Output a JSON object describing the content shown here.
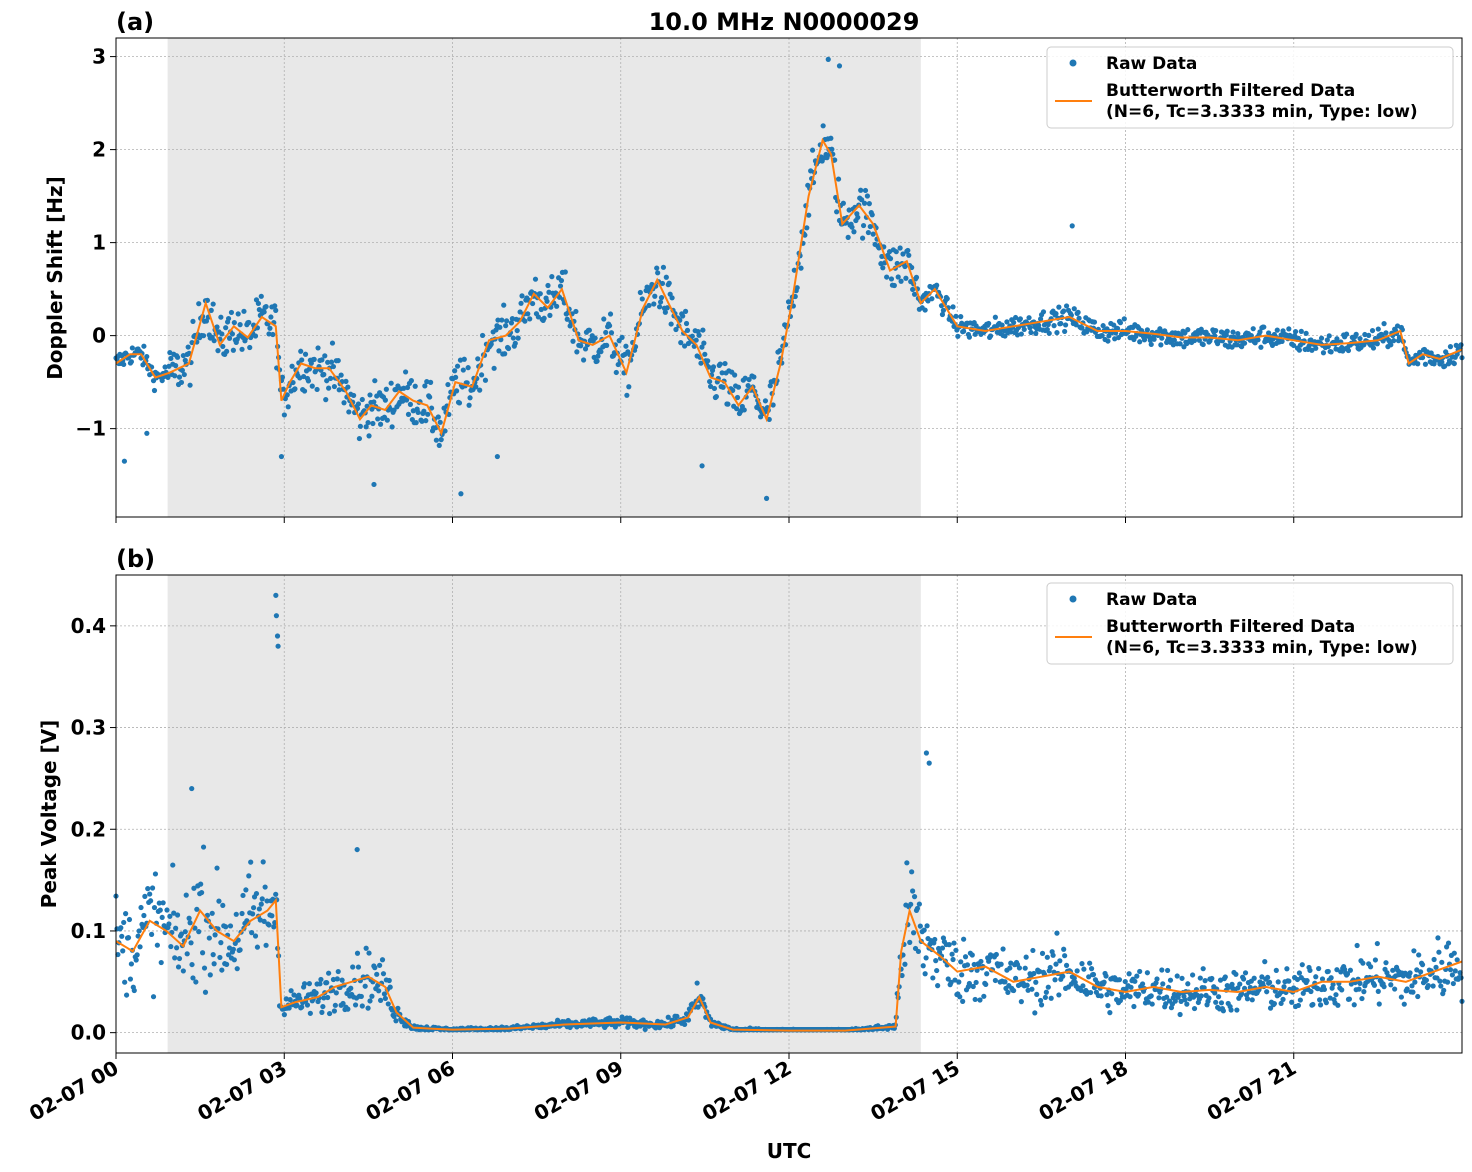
{
  "figure": {
    "title": "10.0 MHz N0000029",
    "xlabel": "UTC",
    "x_tick_labels": [
      "02-07 00",
      "02-07 03",
      "02-07 06",
      "02-07 09",
      "02-07 12",
      "02-07 15",
      "02-07 18",
      "02-07 21"
    ],
    "shaded_region_hours": [
      0.92,
      14.35
    ],
    "colors": {
      "raw": "#1f77b4",
      "filtered": "#ff7f0e",
      "shade": "#e8e8e8",
      "grid": "#b0b0b0"
    }
  },
  "chart_data": [
    {
      "type": "scatter",
      "panel_label": "(a)",
      "ylabel": "Doppler Shift [Hz]",
      "xlim_hours": [
        0,
        24
      ],
      "ylim": [
        -1.95,
        3.2
      ],
      "y_ticks": [
        -1,
        0,
        1,
        2,
        3
      ],
      "y_tick_labels": [
        "−1",
        "0",
        "1",
        "2",
        "3"
      ],
      "grid": true,
      "legend_position": "top-right",
      "series": [
        {
          "name": "Raw Data",
          "kind": "points",
          "spread": 0.28
        },
        {
          "name": "Butterworth Filtered Data\n(N=6, Tc=3.3333 min, Type: low)",
          "kind": "line"
        }
      ],
      "filtered_trend": {
        "x_hours": [
          0,
          0.25,
          0.45,
          0.7,
          0.95,
          1.3,
          1.6,
          1.85,
          2.1,
          2.35,
          2.6,
          2.85,
          2.95,
          3.1,
          3.3,
          3.55,
          3.8,
          4.1,
          4.35,
          4.55,
          4.8,
          5.05,
          5.3,
          5.55,
          5.8,
          6.05,
          6.35,
          6.65,
          6.95,
          7.2,
          7.45,
          7.7,
          7.95,
          8.25,
          8.5,
          8.8,
          9.1,
          9.4,
          9.65,
          9.85,
          10.1,
          10.35,
          10.6,
          10.85,
          11.1,
          11.35,
          11.6,
          11.85,
          12.05,
          12.35,
          12.6,
          12.75,
          12.95,
          13.25,
          13.5,
          13.8,
          14.1,
          14.35,
          14.6,
          15.0,
          15.5,
          16.0,
          16.5,
          17.0,
          17.5,
          18.0,
          18.5,
          19.0,
          19.5,
          20.0,
          20.5,
          21.0,
          21.5,
          22.0,
          22.5,
          22.9,
          23.05,
          23.3,
          23.6,
          23.8,
          24.0
        ],
        "y_hz": [
          -0.3,
          -0.2,
          -0.2,
          -0.45,
          -0.4,
          -0.3,
          0.35,
          -0.1,
          0.1,
          -0.02,
          0.2,
          0.1,
          -0.7,
          -0.5,
          -0.3,
          -0.35,
          -0.35,
          -0.6,
          -0.9,
          -0.75,
          -0.8,
          -0.6,
          -0.7,
          -0.75,
          -1.05,
          -0.5,
          -0.55,
          -0.05,
          0.0,
          0.15,
          0.45,
          0.3,
          0.5,
          -0.05,
          -0.1,
          0.0,
          -0.4,
          0.3,
          0.6,
          0.35,
          0.05,
          -0.1,
          -0.45,
          -0.5,
          -0.75,
          -0.55,
          -0.9,
          -0.3,
          0.35,
          1.5,
          2.1,
          1.95,
          1.2,
          1.4,
          1.2,
          0.7,
          0.8,
          0.35,
          0.5,
          0.1,
          0.05,
          0.1,
          0.15,
          0.2,
          0.05,
          0.05,
          0.02,
          -0.02,
          -0.02,
          -0.05,
          0.0,
          -0.05,
          -0.1,
          -0.08,
          -0.05,
          0.05,
          -0.3,
          -0.2,
          -0.25,
          -0.2,
          -0.15
        ]
      },
      "raw_extremes": {
        "x_hours": [
          0.15,
          0.55,
          2.95,
          4.6,
          6.15,
          6.8,
          10.45,
          11.6,
          12.7,
          12.9,
          17.05
        ],
        "y_hz": [
          -1.35,
          -1.05,
          -1.3,
          -1.6,
          -1.7,
          -1.3,
          -1.4,
          -1.75,
          2.97,
          2.9,
          1.18
        ]
      }
    },
    {
      "type": "scatter",
      "panel_label": "(b)",
      "ylabel": "Peak Voltage [V]",
      "xlim_hours": [
        0,
        24
      ],
      "ylim": [
        -0.02,
        0.45
      ],
      "y_ticks": [
        0.0,
        0.1,
        0.2,
        0.3,
        0.4
      ],
      "y_tick_labels": [
        "0.0",
        "0.1",
        "0.2",
        "0.3",
        "0.4"
      ],
      "grid": true,
      "legend_position": "top-right",
      "series": [
        {
          "name": "Raw Data",
          "kind": "points"
        },
        {
          "name": "Butterworth Filtered Data\n(N=6, Tc=3.3333 min, Type: low)",
          "kind": "line"
        }
      ],
      "filtered_trend": {
        "x_hours": [
          0,
          0.3,
          0.6,
          0.9,
          1.2,
          1.5,
          1.8,
          2.1,
          2.4,
          2.7,
          2.85,
          2.95,
          3.2,
          3.6,
          3.9,
          4.2,
          4.5,
          4.8,
          5.0,
          5.3,
          5.6,
          6.0,
          7.0,
          8.0,
          9.0,
          9.8,
          10.2,
          10.4,
          10.6,
          11.0,
          12.0,
          13.0,
          13.9,
          14.0,
          14.15,
          14.35,
          14.7,
          15.0,
          15.5,
          16.0,
          16.5,
          17.0,
          17.5,
          18.0,
          18.5,
          19.0,
          19.5,
          20.0,
          20.5,
          21.0,
          21.5,
          22.0,
          22.5,
          23.0,
          23.5,
          24.0
        ],
        "y_v": [
          0.09,
          0.08,
          0.11,
          0.1,
          0.085,
          0.12,
          0.1,
          0.09,
          0.11,
          0.12,
          0.13,
          0.025,
          0.03,
          0.035,
          0.045,
          0.05,
          0.055,
          0.045,
          0.02,
          0.005,
          0.004,
          0.003,
          0.004,
          0.008,
          0.01,
          0.008,
          0.015,
          0.035,
          0.01,
          0.003,
          0.002,
          0.002,
          0.006,
          0.08,
          0.12,
          0.09,
          0.075,
          0.06,
          0.065,
          0.05,
          0.055,
          0.06,
          0.045,
          0.04,
          0.045,
          0.04,
          0.042,
          0.04,
          0.045,
          0.04,
          0.05,
          0.05,
          0.055,
          0.05,
          0.06,
          0.07
        ]
      },
      "raw_extremes": {
        "x_hours": [
          1.35,
          2.85,
          2.86,
          2.88,
          2.89,
          4.3,
          14.45,
          14.5
        ],
        "y_v": [
          0.24,
          0.43,
          0.41,
          0.39,
          0.38,
          0.18,
          0.275,
          0.265
        ]
      }
    }
  ]
}
